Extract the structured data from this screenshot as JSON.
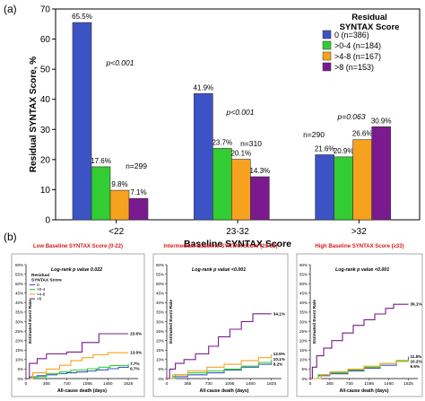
{
  "panel_a_label": "(a)",
  "panel_b_label": "(b)",
  "chart_data": [
    {
      "type": "bar",
      "panel": "(a)",
      "xlabel": "Baseline SYNTAX Score",
      "ylabel": "Residual SYNTAX Score, %",
      "ylim": [
        0,
        70
      ],
      "yticks": [
        0,
        10,
        20,
        30,
        40,
        50,
        60,
        70
      ],
      "categories": [
        "<22",
        "23-32",
        ">32"
      ],
      "legend_title": "Residual\nSYNTAX Score",
      "legend_position": "top-right",
      "series": [
        {
          "name": "0 (n=386)",
          "color": "#3b53c4",
          "values": [
            65.5,
            41.9,
            21.6
          ],
          "labels": [
            "65.5%",
            "41.9%",
            "21.6%"
          ]
        },
        {
          "name": ">0-4 (n=184)",
          "color": "#33cc33",
          "values": [
            17.6,
            23.7,
            20.9
          ],
          "labels": [
            "17.6%",
            "23.7%",
            "20.9%"
          ]
        },
        {
          "name": ">4-8 (n=167)",
          "color": "#f6a21e",
          "values": [
            9.8,
            20.1,
            26.6
          ],
          "labels": [
            "9.8%",
            "20.1%",
            "26.6%"
          ]
        },
        {
          "name": ">8 (n=153)",
          "color": "#7b1a8e",
          "values": [
            7.1,
            14.3,
            30.9
          ],
          "labels": [
            "7.1%",
            "14.3%",
            "30.9%"
          ]
        }
      ],
      "annotations": [
        {
          "group": 0,
          "p": "p<0.001",
          "n": "n=299"
        },
        {
          "group": 1,
          "p": "p<0.001",
          "n": "n=310"
        },
        {
          "group": 2,
          "p": "p=0.063",
          "n": "n=290"
        }
      ]
    },
    {
      "type": "line",
      "panel": "(b)",
      "title": "Low Baseline SYNTAX Score (0-22)",
      "title_color": "#d7191c",
      "stat": "Log-rank p value 0.022",
      "xlabel": "All-cause death (days)",
      "ylabel": "Estimated Event Rate",
      "x_ticks": [
        0,
        365,
        730,
        1095,
        1460,
        1825
      ],
      "y_ticks": [
        "0%",
        "5%",
        "10%",
        "15%",
        "20%",
        "25%",
        "30%",
        "35%",
        "40%",
        "45%",
        "50%",
        "55%",
        "60%"
      ],
      "ylim": [
        0,
        60
      ],
      "xlim": [
        0,
        2000
      ],
      "legend_title": "Residual\nSYNTAX Score",
      "legend_entries": [
        "0",
        ">0-4",
        ">4-8",
        ">8"
      ],
      "end_labels": [
        "6.7%",
        "7.7%",
        "13.6%",
        "23.6%"
      ],
      "series": [
        {
          "name": "0",
          "color": "#3b53c4",
          "points": [
            [
              0,
              0
            ],
            [
              60,
              0.8
            ],
            [
              200,
              1.5
            ],
            [
              365,
              2
            ],
            [
              550,
              2.6
            ],
            [
              730,
              3
            ],
            [
              900,
              3.5
            ],
            [
              1095,
              4
            ],
            [
              1250,
              4.6
            ],
            [
              1460,
              5.2
            ],
            [
              1650,
              5.9
            ],
            [
              1825,
              6.7
            ]
          ]
        },
        {
          "name": ">0-4",
          "color": "#33cc33",
          "points": [
            [
              0,
              0
            ],
            [
              90,
              1
            ],
            [
              365,
              2.5
            ],
            [
              600,
              3.5
            ],
            [
              800,
              4.5
            ],
            [
              1095,
              5.2
            ],
            [
              1300,
              6
            ],
            [
              1500,
              6.8
            ],
            [
              1825,
              7.7
            ]
          ]
        },
        {
          "name": ">4-8",
          "color": "#f6a21e",
          "points": [
            [
              0,
              0
            ],
            [
              120,
              3
            ],
            [
              365,
              5
            ],
            [
              600,
              7
            ],
            [
              800,
              9.5
            ],
            [
              1000,
              11
            ],
            [
              1200,
              12.5
            ],
            [
              1460,
              13.6
            ],
            [
              1825,
              13.6
            ]
          ]
        },
        {
          "name": ">8",
          "color": "#7b1a8e",
          "points": [
            [
              0,
              0
            ],
            [
              60,
              8
            ],
            [
              200,
              10.5
            ],
            [
              365,
              13
            ],
            [
              500,
              13
            ],
            [
              730,
              14
            ],
            [
              1000,
              19
            ],
            [
              1300,
              23.6
            ],
            [
              1825,
              23.6
            ]
          ]
        }
      ]
    },
    {
      "type": "line",
      "panel": "(b)",
      "title": "Intermediate Baseline SYNTAX Score (23-32)",
      "title_color": "#d7191c",
      "stat": "Log-rank p value <0.001",
      "xlabel": "All-cause death (days)",
      "ylabel": "Estimated Event Rate",
      "x_ticks": [
        0,
        365,
        730,
        1095,
        1460,
        1825
      ],
      "y_ticks": [
        "0%",
        "5%",
        "10%",
        "15%",
        "20%",
        "25%",
        "30%",
        "35%",
        "40%",
        "45%",
        "50%",
        "55%",
        "60%"
      ],
      "ylim": [
        0,
        60
      ],
      "xlim": [
        0,
        2000
      ],
      "end_labels": [
        "34.1%",
        "12.9%",
        "10.1%",
        "8.2%"
      ],
      "series": [
        {
          "name": "0",
          "color": "#3b53c4",
          "points": [
            [
              0,
              0
            ],
            [
              100,
              1
            ],
            [
              365,
              2
            ],
            [
              700,
              3
            ],
            [
              1000,
              4.5
            ],
            [
              1300,
              6
            ],
            [
              1600,
              7.5
            ],
            [
              1825,
              8.2
            ]
          ]
        },
        {
          "name": ">0-4",
          "color": "#33cc33",
          "points": [
            [
              0,
              0
            ],
            [
              150,
              2
            ],
            [
              365,
              3
            ],
            [
              700,
              4
            ],
            [
              1000,
              5
            ],
            [
              1300,
              6.5
            ],
            [
              1600,
              8.5
            ],
            [
              1825,
              10.1
            ]
          ]
        },
        {
          "name": ">4-8",
          "color": "#f6a21e",
          "points": [
            [
              0,
              0
            ],
            [
              100,
              2
            ],
            [
              365,
              4
            ],
            [
              700,
              6
            ],
            [
              1000,
              7.5
            ],
            [
              1300,
              9.5
            ],
            [
              1600,
              11
            ],
            [
              1825,
              12.9
            ]
          ]
        },
        {
          "name": ">8",
          "color": "#7b1a8e",
          "points": [
            [
              0,
              0
            ],
            [
              50,
              5
            ],
            [
              150,
              8
            ],
            [
              300,
              10
            ],
            [
              500,
              13
            ],
            [
              730,
              17
            ],
            [
              900,
              22
            ],
            [
              1100,
              26
            ],
            [
              1300,
              30
            ],
            [
              1500,
              34.1
            ],
            [
              1825,
              34.1
            ]
          ]
        }
      ]
    },
    {
      "type": "line",
      "panel": "(b)",
      "title": "High Baseline SYNTAX Score (≥33)",
      "title_color": "#d7191c",
      "stat": "Log-rank p value <0.001",
      "xlabel": "All-cause death (days)",
      "ylabel": "Estimated Event Rate",
      "x_ticks": [
        0,
        365,
        730,
        1095,
        1460,
        1825
      ],
      "y_ticks": [
        "0%",
        "5%",
        "10%",
        "15%",
        "20%",
        "25%",
        "30%",
        "35%",
        "40%",
        "45%",
        "50%",
        "55%",
        "60%"
      ],
      "ylim": [
        0,
        60
      ],
      "xlim": [
        0,
        2000
      ],
      "end_labels": [
        "39.1%",
        "11.5%",
        "10.2%",
        "9.5%"
      ],
      "series": [
        {
          "name": "0",
          "color": "#3b53c4",
          "points": [
            [
              0,
              0
            ],
            [
              150,
              1.5
            ],
            [
              365,
              2.5
            ],
            [
              700,
              4
            ],
            [
              1000,
              5.5
            ],
            [
              1300,
              7
            ],
            [
              1600,
              9
            ],
            [
              1825,
              11.5
            ]
          ]
        },
        {
          "name": ">0-4",
          "color": "#33cc33",
          "points": [
            [
              0,
              0
            ],
            [
              150,
              2
            ],
            [
              365,
              3
            ],
            [
              700,
              4.5
            ],
            [
              1000,
              6
            ],
            [
              1300,
              8
            ],
            [
              1600,
              9.5
            ],
            [
              1825,
              10.2
            ]
          ]
        },
        {
          "name": ">4-8",
          "color": "#f6a21e",
          "points": [
            [
              0,
              0
            ],
            [
              200,
              2
            ],
            [
              365,
              3.5
            ],
            [
              700,
              5
            ],
            [
              1000,
              6.5
            ],
            [
              1300,
              8
            ],
            [
              1600,
              9
            ],
            [
              1825,
              9.5
            ]
          ]
        },
        {
          "name": ">8",
          "color": "#7b1a8e",
          "points": [
            [
              0,
              0
            ],
            [
              40,
              6
            ],
            [
              120,
              12
            ],
            [
              250,
              16
            ],
            [
              400,
              20
            ],
            [
              600,
              24
            ],
            [
              800,
              28
            ],
            [
              1000,
              31
            ],
            [
              1200,
              34
            ],
            [
              1400,
              37
            ],
            [
              1550,
              39.1
            ],
            [
              1825,
              39.1
            ]
          ]
        }
      ]
    }
  ]
}
